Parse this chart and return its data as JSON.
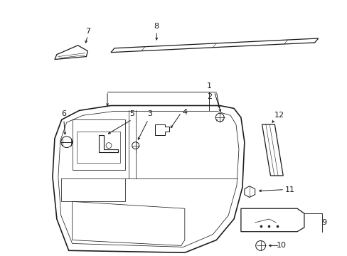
{
  "background_color": "#ffffff",
  "line_color": "#1a1a1a",
  "fig_width": 4.89,
  "fig_height": 3.6,
  "dpi": 100,
  "part7_label": "7",
  "part8_label": "8",
  "part1_label": "1",
  "part2_label": "2",
  "part3_label": "3",
  "part4_label": "4",
  "part5_label": "5",
  "part6_label": "6",
  "part9_label": "9",
  "part10_label": "10",
  "part11_label": "11",
  "part12_label": "12"
}
